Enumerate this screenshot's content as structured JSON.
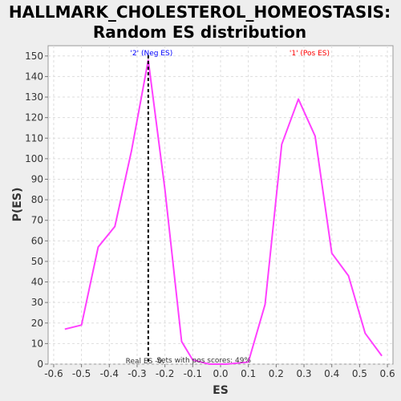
{
  "chart_data": {
    "type": "line",
    "title_lines": [
      "HALLMARK_CHOLESTEROL_HOMEOSTASIS:",
      "Random ES distribution"
    ],
    "xlabel": "ES",
    "ylabel": "P(ES)",
    "xlim": [
      -0.62,
      0.62
    ],
    "ylim": [
      0,
      155
    ],
    "x_ticks": [
      -0.6,
      -0.5,
      -0.4,
      -0.3,
      -0.2,
      -0.1,
      0.0,
      0.1,
      0.2,
      0.3,
      0.4,
      0.5,
      0.6
    ],
    "x_tick_labels": [
      "-0.6",
      "-0.5",
      "-0.4",
      "-0.3",
      "-0.2",
      "-0.1",
      "0.0",
      "0.1",
      "0.2",
      "0.3",
      "0.4",
      "0.5",
      "0.6"
    ],
    "y_ticks": [
      0,
      10,
      20,
      30,
      40,
      50,
      60,
      70,
      80,
      90,
      100,
      110,
      120,
      130,
      140,
      150
    ],
    "y_tick_labels": [
      "0",
      "10",
      "20",
      "30",
      "40",
      "50",
      "60",
      "70",
      "80",
      "90",
      "100",
      "110",
      "120",
      "130",
      "140",
      "150"
    ],
    "grid": true,
    "series": [
      {
        "color": "#ff40ff",
        "points": [
          [
            -0.56,
            17
          ],
          [
            -0.5,
            19
          ],
          [
            -0.44,
            57
          ],
          [
            -0.38,
            67
          ],
          [
            -0.32,
            104
          ],
          [
            -0.26,
            148
          ],
          [
            -0.2,
            85
          ],
          [
            -0.14,
            11
          ],
          [
            -0.1,
            2
          ],
          [
            -0.04,
            0
          ],
          [
            0.02,
            0
          ],
          [
            0.1,
            1
          ],
          [
            0.16,
            29
          ],
          [
            0.22,
            107
          ],
          [
            0.28,
            129
          ],
          [
            0.34,
            111
          ],
          [
            0.4,
            54
          ],
          [
            0.46,
            43
          ],
          [
            0.52,
            15
          ],
          [
            0.58,
            4
          ]
        ]
      }
    ],
    "real_es_x": -0.26,
    "annotations": {
      "neg_label": "'2' (Neg ES)",
      "neg_color": "#0000ff",
      "pos_label": "'1' (Pos ES)",
      "pos_color": "#ff0000",
      "real_es_text": "Real ES -0.",
      "pos_scores_text": "Sets with pos scores: 49%"
    }
  }
}
